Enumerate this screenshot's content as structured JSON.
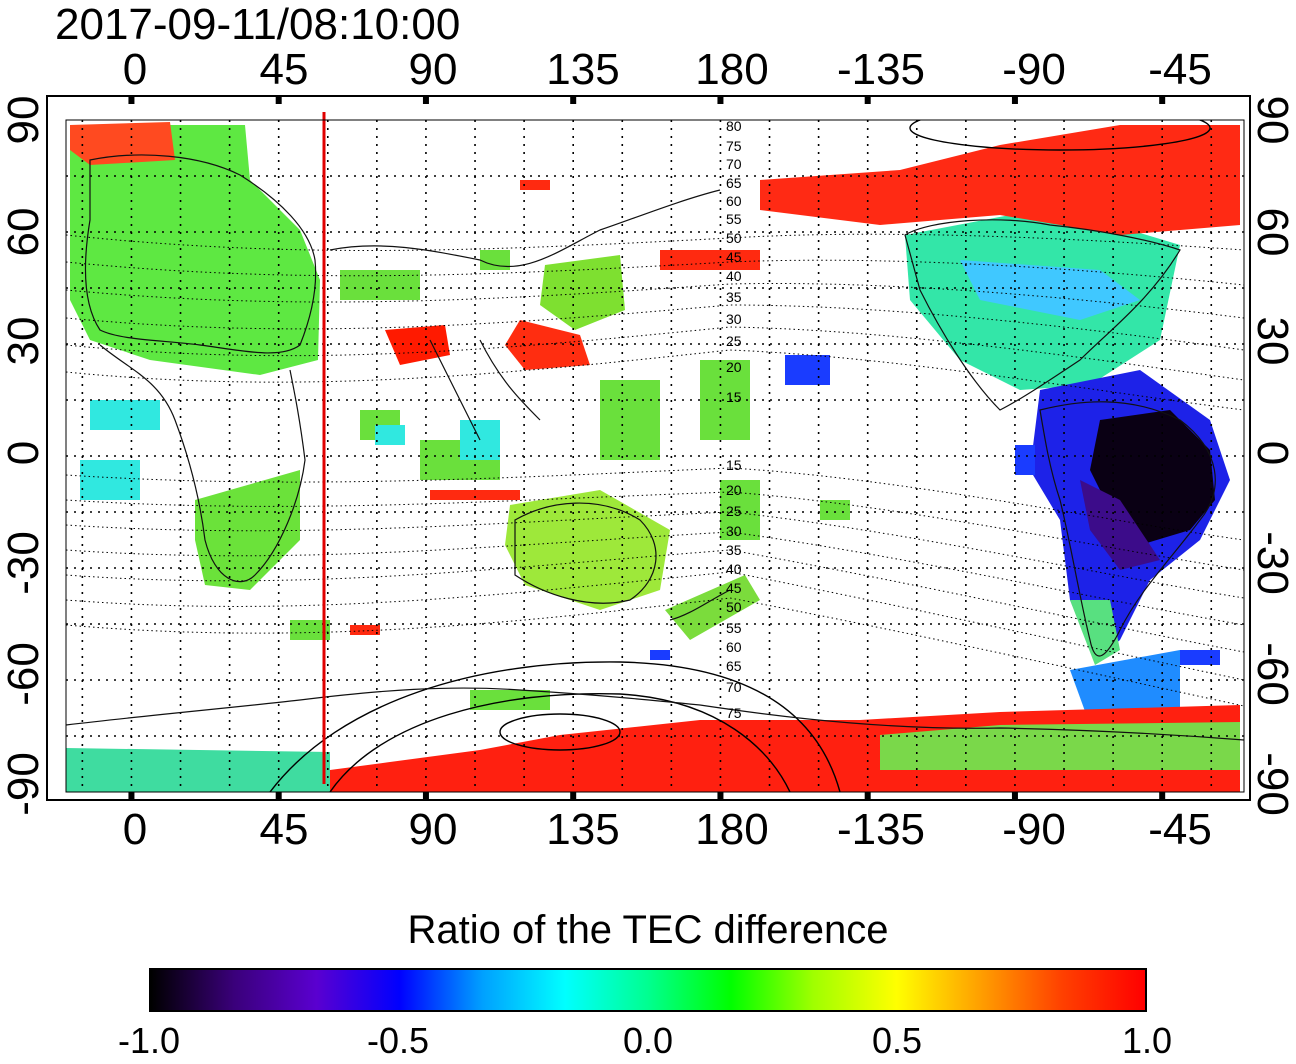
{
  "header": {
    "timestamp": "2017-09-11/08:10:00"
  },
  "axes": {
    "x_ticks_top": [
      "0",
      "45",
      "90",
      "135",
      "180",
      "-135",
      "-90",
      "-45"
    ],
    "x_ticks_bottom": [
      "0",
      "45",
      "90",
      "135",
      "180",
      "-135",
      "-90",
      "-45"
    ],
    "y_ticks_left": [
      "90",
      "60",
      "30",
      "0",
      "-30",
      "-60",
      "-90"
    ],
    "y_ticks_right": [
      "90",
      "60",
      "30",
      "0",
      "-30",
      "-60",
      "-90"
    ],
    "lon_range": [
      "-20",
      "340"
    ],
    "lat_range": [
      -90,
      90
    ],
    "grid": "dotted, every 15 degrees"
  },
  "map": {
    "terminator_line": {
      "color": "#e00000",
      "longitude": "57"
    },
    "geomagnetic_latitude_labels_north": [
      "80",
      "75",
      "70",
      "65",
      "60",
      "55",
      "50",
      "45",
      "40",
      "35",
      "30",
      "25",
      "20",
      "15"
    ],
    "geomagnetic_latitude_labels_south": [
      "15",
      "20",
      "25",
      "30",
      "35",
      "40",
      "45",
      "50",
      "55",
      "60",
      "65",
      "70",
      "75"
    ]
  },
  "colorbar": {
    "title": "Ratio of the TEC difference",
    "min": -1.0,
    "max": 1.0,
    "ticks": [
      "-1.0",
      "-0.5",
      "0.0",
      "0.5",
      "1.0"
    ],
    "colors": [
      "#000000",
      "#3a007a",
      "#5a00d0",
      "#0000ff",
      "#00a0ff",
      "#00ffff",
      "#00ff90",
      "#00ff00",
      "#a0ff00",
      "#ffff00",
      "#ffa000",
      "#ff4000",
      "#ff0000"
    ]
  }
}
